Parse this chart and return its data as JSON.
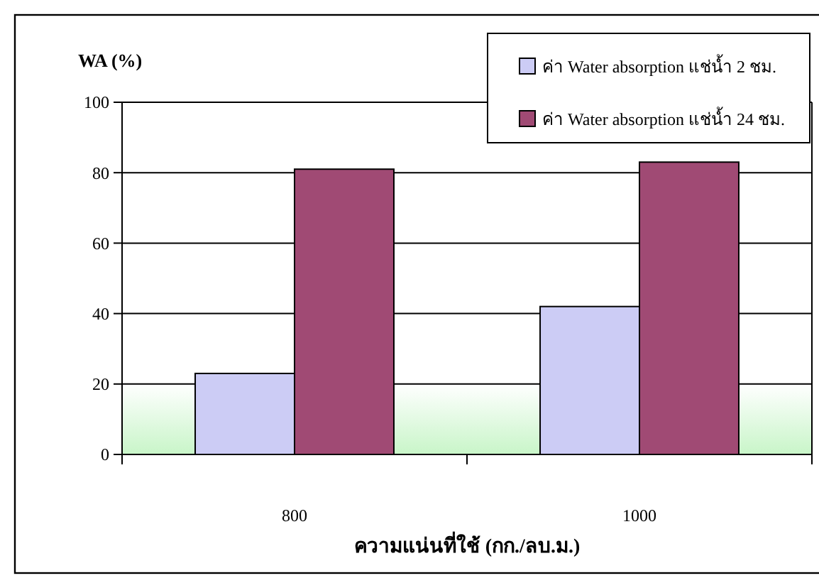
{
  "chart_data": {
    "type": "bar",
    "xlabel": "ความแน่นที่ใช้ (กก./ลบ.ม.)",
    "ylabel": "WA (%)",
    "categories": [
      "800",
      "1000"
    ],
    "series": [
      {
        "name": "ค่า Water absorption แช่น้ำ 2 ชม.",
        "color": "#ccccf5",
        "values": [
          23,
          42
        ]
      },
      {
        "name": "ค่า Water absorption แช่น้ำ 24 ชม.",
        "color": "#a04a74",
        "values": [
          81,
          83
        ]
      }
    ],
    "ylim": [
      0,
      100
    ],
    "yticks": [
      0,
      20,
      40,
      60,
      80,
      100
    ],
    "grid": "y",
    "legend": "top right",
    "bands": [
      {
        "axis": "y",
        "from": 0,
        "to": 20,
        "color": "#c8f5c8"
      }
    ]
  }
}
